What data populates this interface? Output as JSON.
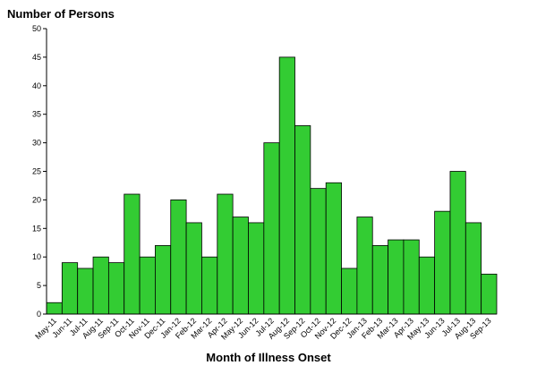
{
  "chart_data": {
    "type": "bar",
    "y_label": "Number of Persons",
    "x_label": "Month of Illness Onset",
    "categories": [
      "May-11",
      "Jun-11",
      "Jul-11",
      "Aug-11",
      "Sep-11",
      "Oct-11",
      "Nov-11",
      "Dec-11",
      "Jan-12",
      "Feb-12",
      "Mar-12",
      "Apr-12",
      "May-12",
      "Jun-12",
      "Jul-12",
      "Aug-12",
      "Sep-12",
      "Oct-12",
      "Nov-12",
      "Dec-12",
      "Jan-13",
      "Feb-13",
      "Mar-13",
      "Apr-13",
      "May-13",
      "Jun-13",
      "Jul-13",
      "Aug-13",
      "Sep-13"
    ],
    "values": [
      2,
      9,
      8,
      10,
      9,
      21,
      10,
      12,
      20,
      16,
      10,
      21,
      17,
      16,
      30,
      45,
      33,
      22,
      23,
      8,
      17,
      12,
      13,
      13,
      10,
      18,
      25,
      16,
      7
    ],
    "color": "#33cc33",
    "ylim": [
      0,
      50
    ],
    "yticks": [
      0,
      5,
      10,
      15,
      20,
      25,
      30,
      35,
      40,
      45,
      50
    ]
  }
}
